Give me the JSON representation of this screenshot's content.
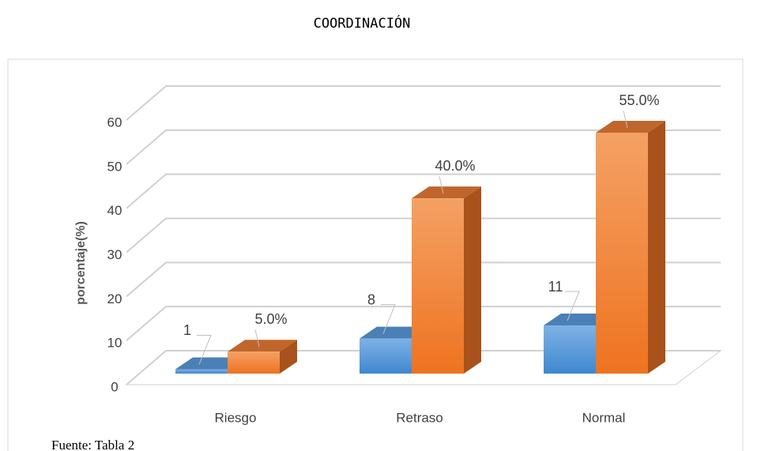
{
  "chart_data": {
    "type": "bar3d",
    "title": "COORDINACIÓN",
    "y_label": "porcentaje(%)",
    "categories": [
      "Riesgo",
      "Retraso",
      "Normal"
    ],
    "series": [
      {
        "color": "#5b9bd5",
        "values": [
          1,
          8,
          11
        ]
      },
      {
        "color": "#ed7d31",
        "values": [
          5,
          40,
          55
        ],
        "value_labels": [
          "5.0%",
          "40.0%",
          "55.0%"
        ]
      }
    ],
    "ylim": [
      0,
      60
    ],
    "yticks": [
      0,
      10,
      20,
      30,
      40,
      50,
      60
    ],
    "grid": true,
    "source": "Fuente: Tabla  2"
  }
}
